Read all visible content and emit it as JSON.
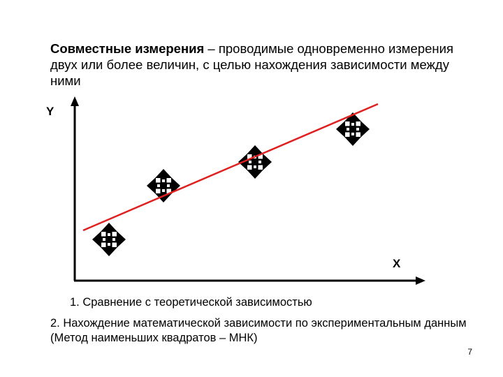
{
  "slide": {
    "title_bold": "Совместные измерения",
    "title_rest": " – проводимые одновременно измерения двух или более величин, с целью нахождения зависимости между ними",
    "note_1": "1. Сравнение с теоретической зависимостью",
    "note_2": "2. Нахождение математической зависимости по экспериментальным данным (Метод наименьших квадратов – МНК)",
    "page_number": "7"
  },
  "diagram": {
    "y_axis_label": "Y",
    "x_axis_label": "X",
    "marker_icon": "four-way-arrow-icon",
    "fit_line_color": "#e02020",
    "axis_color": "#000000",
    "marker_color": "#000000",
    "points": [
      {
        "x": 1,
        "y": 1
      },
      {
        "x": 2,
        "y": 2.6
      },
      {
        "x": 3,
        "y": 3.4
      },
      {
        "x": 4,
        "y": 4.7
      }
    ]
  }
}
